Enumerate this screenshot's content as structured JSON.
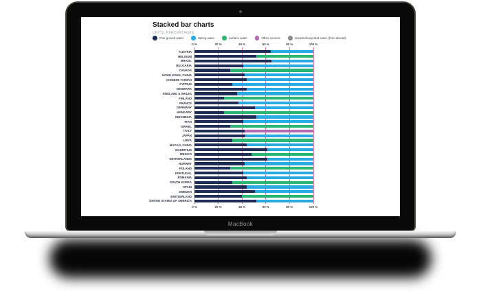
{
  "device": {
    "brand_label": "MacBook"
  },
  "chart_data": {
    "type": "bar",
    "stacked": true,
    "orientation": "horizontal",
    "title": "Stacked bar charts",
    "subtitle": "UNITS: PERCENTAGES",
    "xlabel": "",
    "ylabel": "",
    "xlim": [
      0,
      100
    ],
    "grid": true,
    "gridline_color": "#f478a6",
    "legend_position": "top",
    "ticks": [
      {
        "label": "0 %",
        "value": 0
      },
      {
        "label": "20 %",
        "value": 20
      },
      {
        "label": "40 %",
        "value": 40
      },
      {
        "label": "60 %",
        "value": 60
      },
      {
        "label": "80 %",
        "value": 80
      },
      {
        "label": "100 %",
        "value": 100
      }
    ],
    "legend": [
      {
        "label": "True ground water",
        "color": "#1f2c55"
      },
      {
        "label": "Spring water",
        "color": "#29a9e1"
      },
      {
        "label": "Surface water",
        "color": "#2bb572"
      },
      {
        "label": "Other sources",
        "color": "#b168b1"
      },
      {
        "label": "Imported/exported water (from abroad)",
        "color": "#8c8c8c"
      }
    ],
    "rows": [
      {
        "label": "AUSTRIA",
        "segments": [
          {
            "series": "True ground water",
            "value": 64
          },
          {
            "series": "Spring water",
            "value": 36
          }
        ]
      },
      {
        "label": "BELGIUM",
        "segments": [
          {
            "series": "True ground water",
            "value": 52
          },
          {
            "series": "Surface water",
            "value": 48
          }
        ]
      },
      {
        "label": "BRAZIL",
        "segments": [
          {
            "series": "True ground water",
            "value": 65
          },
          {
            "series": "Spring water",
            "value": 35
          }
        ]
      },
      {
        "label": "BULGARIA",
        "segments": [
          {
            "series": "True ground water",
            "value": 41
          },
          {
            "series": "Spring water",
            "value": 59
          }
        ]
      },
      {
        "label": "CANADA",
        "segments": [
          {
            "series": "True ground water",
            "value": 30
          },
          {
            "series": "Surface water",
            "value": 70
          }
        ]
      },
      {
        "label": "HONG KONG, CHINA",
        "segments": [
          {
            "series": "True ground water",
            "value": 42
          },
          {
            "series": "Spring water",
            "value": 58
          }
        ]
      },
      {
        "label": "CHINESE TAIWAN",
        "segments": [
          {
            "series": "True ground water",
            "value": 44
          },
          {
            "series": "Spring water",
            "value": 56
          }
        ]
      },
      {
        "label": "CYPRUS",
        "segments": [
          {
            "series": "True ground water",
            "value": 32
          },
          {
            "series": "Spring water",
            "value": 68
          }
        ]
      },
      {
        "label": "DENMARK",
        "segments": [
          {
            "series": "True ground water",
            "value": 44
          },
          {
            "series": "Spring water",
            "value": 56
          }
        ]
      },
      {
        "label": "ENGLAND & WALES",
        "segments": [
          {
            "series": "True ground water",
            "value": 36
          },
          {
            "series": "Spring water",
            "value": 64
          }
        ]
      },
      {
        "label": "FINLAND",
        "segments": [
          {
            "series": "True ground water",
            "value": 25
          },
          {
            "series": "Surface water",
            "value": 75
          }
        ]
      },
      {
        "label": "FRANCE",
        "segments": [
          {
            "series": "True ground water",
            "value": 37
          },
          {
            "series": "Spring water",
            "value": 63
          }
        ]
      },
      {
        "label": "GERMANY",
        "segments": [
          {
            "series": "True ground water",
            "value": 51
          },
          {
            "series": "Spring water",
            "value": 49
          }
        ]
      },
      {
        "label": "HUNGARY",
        "segments": [
          {
            "series": "True ground water",
            "value": 25
          },
          {
            "series": "Surface water",
            "value": 75
          }
        ]
      },
      {
        "label": "INDONESIA",
        "segments": [
          {
            "series": "True ground water",
            "value": 52
          },
          {
            "series": "Spring water",
            "value": 48
          }
        ]
      },
      {
        "label": "IRAN",
        "segments": [
          {
            "series": "True ground water",
            "value": 41
          },
          {
            "series": "Spring water",
            "value": 59
          }
        ]
      },
      {
        "label": "ISRAEL",
        "segments": [
          {
            "series": "True ground water",
            "value": 30
          },
          {
            "series": "Surface water",
            "value": 70
          }
        ]
      },
      {
        "label": "ITALY",
        "segments": [
          {
            "series": "True ground water",
            "value": 42
          },
          {
            "series": "Other sources",
            "value": 58
          }
        ]
      },
      {
        "label": "JAPAN",
        "segments": [
          {
            "series": "True ground water",
            "value": 43
          },
          {
            "series": "Spring water",
            "value": 57
          }
        ]
      },
      {
        "label": "LIBYA",
        "segments": [
          {
            "series": "True ground water",
            "value": 32
          },
          {
            "series": "Surface water",
            "value": 68
          }
        ]
      },
      {
        "label": "MACAO, CHINA",
        "segments": [
          {
            "series": "True ground water",
            "value": 44
          },
          {
            "series": "Spring water",
            "value": 56
          }
        ]
      },
      {
        "label": "MAURITIUS",
        "segments": [
          {
            "series": "True ground water",
            "value": 61
          },
          {
            "series": "Spring water",
            "value": 39
          }
        ]
      },
      {
        "label": "MEXICO",
        "segments": [
          {
            "series": "True ground water",
            "value": 48
          },
          {
            "series": "Surface water",
            "value": 52
          }
        ]
      },
      {
        "label": "NETHERLANDS",
        "segments": [
          {
            "series": "True ground water",
            "value": 61
          },
          {
            "series": "Spring water",
            "value": 39
          }
        ]
      },
      {
        "label": "NORWAY",
        "segments": [
          {
            "series": "True ground water",
            "value": 42
          },
          {
            "series": "Spring water",
            "value": 58
          }
        ]
      },
      {
        "label": "POLAND",
        "segments": [
          {
            "series": "True ground water",
            "value": 30
          },
          {
            "series": "Surface water",
            "value": 70
          }
        ]
      },
      {
        "label": "PORTUGAL",
        "segments": [
          {
            "series": "True ground water",
            "value": 41
          },
          {
            "series": "Spring water",
            "value": 59
          }
        ]
      },
      {
        "label": "ROMANIA",
        "segments": [
          {
            "series": "True ground water",
            "value": 44
          },
          {
            "series": "Spring water",
            "value": 56
          }
        ]
      },
      {
        "label": "SOUTH KOREA",
        "segments": [
          {
            "series": "True ground water",
            "value": 32
          },
          {
            "series": "Surface water",
            "value": 68
          }
        ]
      },
      {
        "label": "SPAIN",
        "segments": [
          {
            "series": "True ground water",
            "value": 44
          },
          {
            "series": "Spring water",
            "value": 56
          }
        ]
      },
      {
        "label": "SWEDEN",
        "segments": [
          {
            "series": "True ground water",
            "value": 51
          },
          {
            "series": "Spring water",
            "value": 49
          }
        ]
      },
      {
        "label": "SWITZERLAND",
        "segments": [
          {
            "series": "True ground water",
            "value": 40
          },
          {
            "series": "Surface water",
            "value": 60
          }
        ]
      },
      {
        "label": "UNITED STATES OF AMERICA",
        "segments": [
          {
            "series": "True ground water",
            "value": 52
          },
          {
            "series": "Spring water",
            "value": 48
          }
        ]
      }
    ]
  }
}
